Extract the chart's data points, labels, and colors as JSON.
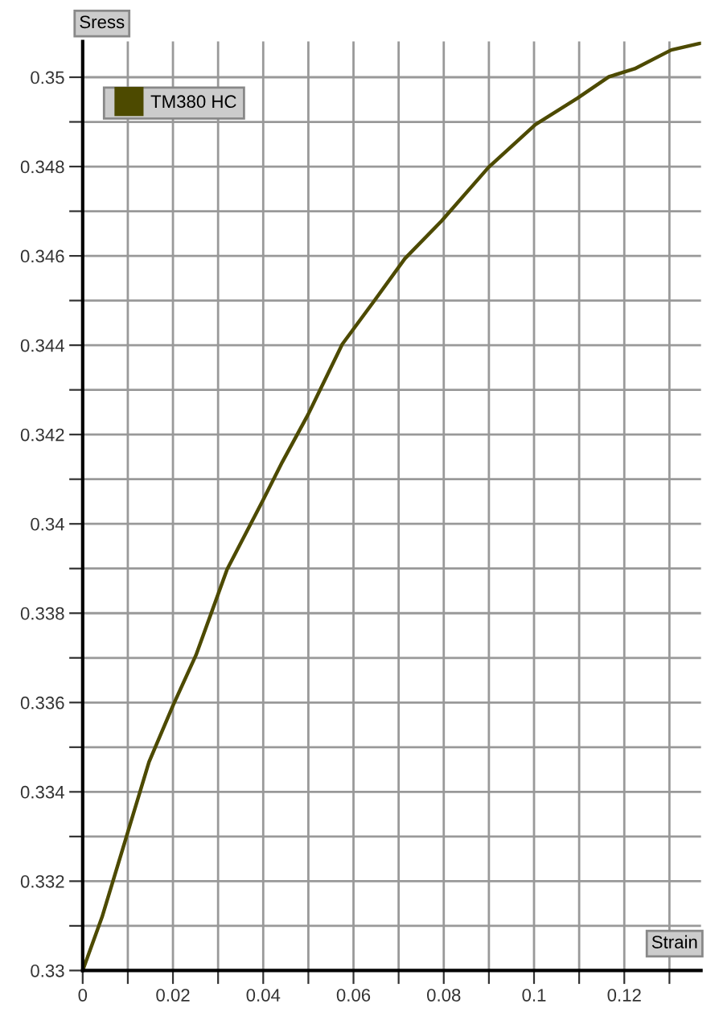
{
  "chart_data": {
    "type": "line",
    "xlabel": "Strain",
    "ylabel": "Sress",
    "x": [
      0,
      0.0043,
      0.01,
      0.0147,
      0.02,
      0.0251,
      0.032,
      0.04,
      0.0442,
      0.05,
      0.0575,
      0.0645,
      0.0714,
      0.0795,
      0.0899,
      0.1003,
      0.1096,
      0.1166,
      0.1223,
      0.1304,
      0.1368
    ],
    "series": [
      {
        "name": "TM380 HC",
        "color": "#4d4a00",
        "values": [
          0.33,
          0.3312,
          0.3331,
          0.33467,
          0.33593,
          0.33706,
          0.33898,
          0.34054,
          0.34138,
          0.34246,
          0.34402,
          0.34498,
          0.34594,
          0.34678,
          0.34798,
          0.34894,
          0.34953,
          0.35001,
          0.35019,
          0.35061,
          0.35076
        ]
      }
    ],
    "xlim": [
      0,
      0.137
    ],
    "ylim": [
      0.33,
      0.3508
    ],
    "xticks": [
      0,
      {
        "value": 0.01,
        "label": null
      },
      0.02,
      {
        "value": 0.03,
        "label": null
      },
      0.04,
      {
        "value": 0.05,
        "label": null
      },
      0.06,
      {
        "value": 0.07,
        "label": null
      },
      0.08,
      {
        "value": 0.09,
        "label": null
      },
      0.1,
      {
        "value": 0.11,
        "label": null
      },
      0.12,
      {
        "value": 0.13,
        "label": null
      }
    ],
    "yticks": [
      0.33,
      {
        "value": 0.331,
        "label": null
      },
      0.332,
      {
        "value": 0.333,
        "label": null
      },
      0.334,
      {
        "value": 0.335,
        "label": null
      },
      0.336,
      {
        "value": 0.337,
        "label": null
      },
      0.338,
      {
        "value": 0.339,
        "label": null
      },
      0.34,
      {
        "value": 0.341,
        "label": null
      },
      0.342,
      {
        "value": 0.343,
        "label": null
      },
      0.344,
      {
        "value": 0.345,
        "label": null
      },
      0.346,
      {
        "value": 0.347,
        "label": null
      },
      0.348,
      {
        "value": 0.349,
        "label": null
      },
      0.35
    ],
    "grid": true,
    "legend": "top left",
    "line_style": "solid"
  }
}
